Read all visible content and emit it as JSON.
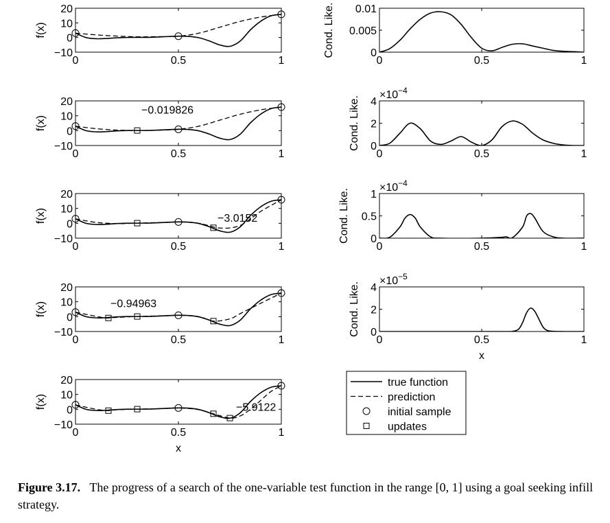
{
  "caption": {
    "label": "Figure 3.17.",
    "text": "The progress of a search of the one-variable test function in the range [0, 1] using a goal seeking infill strategy."
  },
  "legend": {
    "items": [
      {
        "style": "solid",
        "label": "true function"
      },
      {
        "style": "dashed",
        "label": "prediction"
      },
      {
        "style": "circle",
        "label": "initial sample"
      },
      {
        "style": "square",
        "label": "updates"
      }
    ]
  },
  "chart_data": [
    {
      "type": "line",
      "panel": "left-1",
      "ylabel": "f(x)",
      "xlabel": "",
      "xlim": [
        0,
        1
      ],
      "ylim": [
        -10,
        20
      ],
      "xticks": [
        "0",
        "0.5",
        "1"
      ],
      "yticks": [
        "−10",
        "0",
        "10",
        "20"
      ],
      "series": [
        {
          "name": "true function",
          "style": "solid",
          "x": [
            0,
            0.05,
            0.1,
            0.15,
            0.2,
            0.25,
            0.3,
            0.35,
            0.4,
            0.45,
            0.5,
            0.55,
            0.6,
            0.65,
            0.7,
            0.75,
            0.8,
            0.85,
            0.9,
            0.95,
            1
          ],
          "y": [
            3.03,
            0.05,
            -0.83,
            -0.65,
            -0.17,
            0.07,
            0.1,
            0.11,
            0.35,
            0.66,
            0.91,
            0.75,
            -0.15,
            -2.31,
            -5.02,
            -6.02,
            -2.44,
            5.23,
            11.12,
            14.83,
            15.83
          ]
        },
        {
          "name": "prediction",
          "style": "dashed",
          "x": [
            0,
            0.1,
            0.2,
            0.3,
            0.4,
            0.5,
            0.6,
            0.7,
            0.8,
            0.9,
            1
          ],
          "y": [
            3,
            1.8,
            1.0,
            0.5,
            0.6,
            0.9,
            3,
            7,
            11,
            14,
            15.8
          ]
        },
        {
          "name": "initial sample",
          "style": "circle",
          "x": [
            0,
            0.5,
            1
          ],
          "y": [
            3.03,
            0.91,
            15.83
          ]
        }
      ]
    },
    {
      "type": "line",
      "panel": "right-1",
      "ylabel": "Cond. Like.",
      "xlabel": "",
      "xlim": [
        0,
        1
      ],
      "ylim": [
        0,
        0.01
      ],
      "xticks": [
        "0",
        "0.5",
        "1"
      ],
      "yticks": [
        "0",
        "0.005",
        "0.01"
      ],
      "ymultiplier": "",
      "series": [
        {
          "name": "conditional likelihood",
          "style": "solid",
          "x": [
            0,
            0.05,
            0.1,
            0.15,
            0.2,
            0.25,
            0.3,
            0.35,
            0.4,
            0.45,
            0.5,
            0.55,
            0.6,
            0.65,
            0.7,
            0.75,
            0.8,
            0.85,
            0.9,
            0.95,
            1
          ],
          "y": [
            0,
            0.0008,
            0.0027,
            0.0053,
            0.0075,
            0.0089,
            0.0092,
            0.0085,
            0.0063,
            0.0033,
            0.0009,
            0.0003,
            0.0011,
            0.0018,
            0.0019,
            0.0014,
            0.0009,
            0.0004,
            0.0002,
            0.0001,
            0
          ]
        }
      ]
    },
    {
      "type": "line",
      "panel": "left-2",
      "ylabel": "f(x)",
      "xlabel": "",
      "xlim": [
        0,
        1
      ],
      "ylim": [
        -10,
        20
      ],
      "xticks": [
        "0",
        "0.5",
        "1"
      ],
      "yticks": [
        "−10",
        "0",
        "10",
        "20"
      ],
      "annotation": {
        "text": "−0.019826",
        "x": 0.32,
        "y": 11.5
      },
      "series": [
        {
          "name": "true function",
          "style": "solid",
          "x": [
            0,
            0.05,
            0.1,
            0.15,
            0.2,
            0.25,
            0.3,
            0.35,
            0.4,
            0.45,
            0.5,
            0.55,
            0.6,
            0.65,
            0.7,
            0.75,
            0.8,
            0.85,
            0.9,
            0.95,
            1
          ],
          "y": [
            3.03,
            0.05,
            -0.83,
            -0.65,
            -0.17,
            0.07,
            0.1,
            0.11,
            0.35,
            0.66,
            0.91,
            0.75,
            -0.15,
            -2.31,
            -5.02,
            -6.02,
            -2.44,
            5.23,
            11.12,
            14.83,
            15.83
          ]
        },
        {
          "name": "prediction",
          "style": "dashed",
          "x": [
            0,
            0.1,
            0.2,
            0.3,
            0.4,
            0.5,
            0.6,
            0.7,
            0.8,
            0.9,
            1
          ],
          "y": [
            3,
            1.3,
            0.4,
            0.1,
            0.3,
            0.9,
            3,
            7,
            11,
            14,
            15.8
          ]
        },
        {
          "name": "initial sample",
          "style": "circle",
          "x": [
            0,
            0.5,
            1
          ],
          "y": [
            3.03,
            0.91,
            15.83
          ]
        },
        {
          "name": "updates",
          "style": "square",
          "x": [
            0.3
          ],
          "y": [
            0.1
          ]
        }
      ]
    },
    {
      "type": "line",
      "panel": "right-2",
      "ylabel": "Cond. Like.",
      "xlabel": "",
      "xlim": [
        0,
        1
      ],
      "ylim": [
        0,
        4
      ],
      "xticks": [
        "0",
        "0.5",
        "1"
      ],
      "yticks": [
        "0",
        "2",
        "4"
      ],
      "ymultiplier": "×10",
      "yexponent": "−4",
      "series": [
        {
          "name": "conditional likelihood",
          "style": "solid",
          "x": [
            0,
            0.05,
            0.1,
            0.15,
            0.2,
            0.25,
            0.3,
            0.35,
            0.4,
            0.45,
            0.5,
            0.55,
            0.6,
            0.65,
            0.7,
            0.75,
            0.8,
            0.85,
            0.9,
            0.95,
            1
          ],
          "y": [
            0,
            0.2,
            1.1,
            2.0,
            1.5,
            0.4,
            0.1,
            0.4,
            0.8,
            0.3,
            0,
            0.5,
            1.7,
            2.2,
            1.9,
            1.1,
            0.5,
            0.2,
            0.05,
            0,
            0
          ]
        }
      ]
    },
    {
      "type": "line",
      "panel": "left-3",
      "ylabel": "f(x)",
      "xlabel": "",
      "xlim": [
        0,
        1
      ],
      "ylim": [
        -10,
        20
      ],
      "xticks": [
        "0",
        "0.5",
        "1"
      ],
      "yticks": [
        "−10",
        "0",
        "10",
        "20"
      ],
      "annotation": {
        "text": "−3.0152",
        "x": 0.69,
        "y": 1.0
      },
      "series": [
        {
          "name": "true function",
          "style": "solid",
          "x": [
            0,
            0.05,
            0.1,
            0.15,
            0.2,
            0.25,
            0.3,
            0.35,
            0.4,
            0.45,
            0.5,
            0.55,
            0.6,
            0.65,
            0.7,
            0.75,
            0.8,
            0.85,
            0.9,
            0.95,
            1
          ],
          "y": [
            3.03,
            0.05,
            -0.83,
            -0.65,
            -0.17,
            0.07,
            0.1,
            0.11,
            0.35,
            0.66,
            0.91,
            0.75,
            -0.15,
            -2.31,
            -5.02,
            -6.02,
            -2.44,
            5.23,
            11.12,
            14.83,
            15.83
          ]
        },
        {
          "name": "prediction",
          "style": "dashed",
          "x": [
            0,
            0.1,
            0.2,
            0.3,
            0.4,
            0.5,
            0.6,
            0.7,
            0.8,
            0.9,
            1
          ],
          "y": [
            3,
            0.6,
            -0.2,
            0.1,
            0.5,
            0.9,
            0.0,
            -3.2,
            -1.5,
            8,
            15.8
          ]
        },
        {
          "name": "initial sample",
          "style": "circle",
          "x": [
            0,
            0.5,
            1
          ],
          "y": [
            3.03,
            0.91,
            15.83
          ]
        },
        {
          "name": "updates",
          "style": "square",
          "x": [
            0.3,
            0.67
          ],
          "y": [
            0.1,
            -3.0
          ]
        }
      ]
    },
    {
      "type": "line",
      "panel": "right-3",
      "ylabel": "Cond. Like.",
      "xlabel": "",
      "xlim": [
        0,
        1
      ],
      "ylim": [
        0,
        1
      ],
      "xticks": [
        "0",
        "0.5",
        "1"
      ],
      "yticks": [
        "0",
        "0.5",
        "1"
      ],
      "ymultiplier": "×10",
      "yexponent": "−4",
      "series": [
        {
          "name": "conditional likelihood",
          "style": "solid",
          "x": [
            0,
            0.05,
            0.1,
            0.125,
            0.15,
            0.175,
            0.2,
            0.25,
            0.3,
            0.5,
            0.6,
            0.62,
            0.65,
            0.7,
            0.72,
            0.74,
            0.76,
            0.8,
            0.85,
            0.9,
            1
          ],
          "y": [
            0,
            0.02,
            0.25,
            0.45,
            0.53,
            0.45,
            0.25,
            0.03,
            0,
            0,
            0.02,
            0.03,
            0.01,
            0.25,
            0.5,
            0.55,
            0.45,
            0.15,
            0.03,
            0,
            0
          ]
        }
      ]
    },
    {
      "type": "line",
      "panel": "left-4",
      "ylabel": "f(x)",
      "xlabel": "",
      "xlim": [
        0,
        1
      ],
      "ylim": [
        -10,
        20
      ],
      "xticks": [
        "0",
        "0.5",
        "1"
      ],
      "yticks": [
        "−10",
        "0",
        "10",
        "20"
      ],
      "annotation": {
        "text": "−0.94963",
        "x": 0.17,
        "y": 6.5
      },
      "series": [
        {
          "name": "true function",
          "style": "solid",
          "x": [
            0,
            0.05,
            0.1,
            0.15,
            0.2,
            0.25,
            0.3,
            0.35,
            0.4,
            0.45,
            0.5,
            0.55,
            0.6,
            0.65,
            0.7,
            0.75,
            0.8,
            0.85,
            0.9,
            0.95,
            1
          ],
          "y": [
            3.03,
            0.05,
            -0.83,
            -0.65,
            -0.17,
            0.07,
            0.1,
            0.11,
            0.35,
            0.66,
            0.91,
            0.75,
            -0.15,
            -2.31,
            -5.02,
            -6.02,
            -2.44,
            5.23,
            11.12,
            14.83,
            15.83
          ]
        },
        {
          "name": "prediction",
          "style": "dashed",
          "x": [
            0,
            0.1,
            0.15,
            0.2,
            0.3,
            0.4,
            0.5,
            0.6,
            0.67,
            0.75,
            0.8,
            0.9,
            1
          ],
          "y": [
            3,
            0.2,
            -0.9,
            -0.5,
            0.1,
            0.5,
            0.9,
            0.0,
            -3.0,
            -1.5,
            2,
            9,
            15.8
          ]
        },
        {
          "name": "initial sample",
          "style": "circle",
          "x": [
            0,
            0.5,
            1
          ],
          "y": [
            3.03,
            0.91,
            15.83
          ]
        },
        {
          "name": "updates",
          "style": "square",
          "x": [
            0.16,
            0.3,
            0.67
          ],
          "y": [
            -0.9,
            0.1,
            -3.0
          ]
        }
      ]
    },
    {
      "type": "line",
      "panel": "right-4",
      "ylabel": "Cond. Like.",
      "xlabel": "x",
      "xlim": [
        0,
        1
      ],
      "ylim": [
        0,
        4
      ],
      "xticks": [
        "0",
        "0.5",
        "1"
      ],
      "yticks": [
        "0",
        "2",
        "4"
      ],
      "ymultiplier": "×10",
      "yexponent": "−5",
      "series": [
        {
          "name": "conditional likelihood",
          "style": "solid",
          "x": [
            0,
            0.6,
            0.65,
            0.68,
            0.7,
            0.72,
            0.74,
            0.76,
            0.78,
            0.8,
            0.82,
            0.85,
            0.9,
            1
          ],
          "y": [
            0,
            0,
            0.02,
            0.2,
            0.8,
            1.7,
            2.1,
            1.8,
            1.1,
            0.4,
            0.1,
            0.02,
            0,
            0
          ]
        }
      ]
    },
    {
      "type": "line",
      "panel": "left-5",
      "ylabel": "f(x)",
      "xlabel": "x",
      "xlim": [
        0,
        1
      ],
      "ylim": [
        -10,
        20
      ],
      "xticks": [
        "0",
        "0.5",
        "1"
      ],
      "yticks": [
        "−10",
        "0",
        "10",
        "20"
      ],
      "annotation": {
        "text": "−5.9122",
        "x": 0.78,
        "y": -1.0
      },
      "series": [
        {
          "name": "true function",
          "style": "solid",
          "x": [
            0,
            0.05,
            0.1,
            0.15,
            0.2,
            0.25,
            0.3,
            0.35,
            0.4,
            0.45,
            0.5,
            0.55,
            0.6,
            0.65,
            0.7,
            0.75,
            0.8,
            0.85,
            0.9,
            0.95,
            1
          ],
          "y": [
            3.03,
            0.05,
            -0.83,
            -0.65,
            -0.17,
            0.07,
            0.1,
            0.11,
            0.35,
            0.66,
            0.91,
            0.75,
            -0.15,
            -2.31,
            -5.02,
            -6.02,
            -2.44,
            5.23,
            11.12,
            14.83,
            15.83
          ]
        },
        {
          "name": "prediction",
          "style": "dashed",
          "x": [
            0,
            0.1,
            0.16,
            0.2,
            0.3,
            0.4,
            0.5,
            0.6,
            0.67,
            0.75,
            0.8,
            0.85,
            0.9,
            0.95,
            1
          ],
          "y": [
            3,
            0.0,
            -0.9,
            -0.3,
            0.1,
            0.4,
            0.9,
            -0.3,
            -3.0,
            -5.9,
            -4.5,
            0,
            6,
            12,
            15.8
          ]
        },
        {
          "name": "initial sample",
          "style": "circle",
          "x": [
            0,
            0.5,
            1
          ],
          "y": [
            3.03,
            0.91,
            15.83
          ]
        },
        {
          "name": "updates",
          "style": "square",
          "x": [
            0.16,
            0.3,
            0.67,
            0.75
          ],
          "y": [
            -0.9,
            0.1,
            -3.0,
            -5.9
          ]
        }
      ]
    }
  ]
}
